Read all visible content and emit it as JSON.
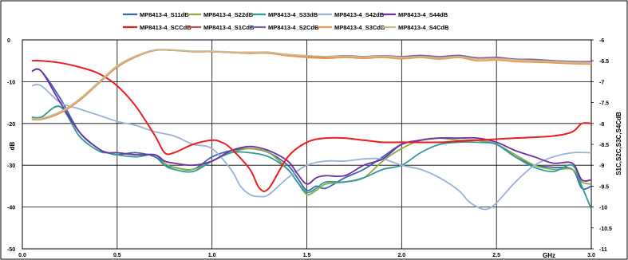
{
  "chart_data": {
    "type": "line",
    "title": "",
    "xlabel": "GHz",
    "ylabel": "dB",
    "y2label": "S1C,S2C,S3C,S4CdB",
    "xlim": [
      0,
      3
    ],
    "ylim": [
      -50,
      0
    ],
    "y2lim": [
      -11,
      -6
    ],
    "grid": true,
    "legend_position": "top",
    "x_ticks": [
      "0.0",
      "0.5",
      "1.0",
      "1.5",
      "2.0",
      "2.5",
      "3.0"
    ],
    "y_ticks": [
      "0",
      "-10",
      "-20",
      "-30",
      "-40",
      "-50"
    ],
    "y2_ticks": [
      "-6",
      "-6.5",
      "-7",
      "-7.5",
      "-8",
      "-8.5",
      "-9",
      "-9.5",
      "-10",
      "-10.5",
      "-11"
    ],
    "series": [
      {
        "name": "MP8413-4_S11dB",
        "color": "#3a66b0",
        "axis": "left",
        "x": [
          0.05,
          0.1,
          0.2,
          0.3,
          0.4,
          0.45,
          0.5,
          0.6,
          0.7,
          0.75,
          0.8,
          0.9,
          1.0,
          1.1,
          1.2,
          1.3,
          1.4,
          1.45,
          1.5,
          1.55,
          1.6,
          1.7,
          1.8,
          1.9,
          2.0,
          2.1,
          2.2,
          2.3,
          2.4,
          2.5,
          2.6,
          2.7,
          2.8,
          2.9,
          2.95,
          3.0
        ],
        "y": [
          -7.5,
          -7.5,
          -14,
          -22,
          -26,
          -27,
          -27.5,
          -27,
          -28,
          -30,
          -30.5,
          -31,
          -28,
          -26.5,
          -26,
          -27,
          -30,
          -33,
          -36,
          -35,
          -35.5,
          -33,
          -31,
          -28,
          -25,
          -24,
          -23.5,
          -24,
          -24,
          -25,
          -28,
          -30,
          -30.5,
          -31,
          -35.5,
          -35
        ]
      },
      {
        "name": "MP8413-4_S22dB",
        "color": "#8faa43",
        "axis": "left",
        "x": [
          0.05,
          0.1,
          0.2,
          0.3,
          0.4,
          0.45,
          0.5,
          0.6,
          0.7,
          0.75,
          0.8,
          0.9,
          1.0,
          1.1,
          1.2,
          1.3,
          1.4,
          1.45,
          1.5,
          1.55,
          1.6,
          1.7,
          1.8,
          1.9,
          2.0,
          2.1,
          2.2,
          2.3,
          2.4,
          2.5,
          2.6,
          2.7,
          2.8,
          2.9,
          2.95,
          3.0
        ],
        "y": [
          -18.5,
          -18.5,
          -16,
          -23,
          -26.5,
          -27,
          -27,
          -27.5,
          -27.5,
          -29.5,
          -30.5,
          -31,
          -29,
          -27,
          -26,
          -27,
          -31,
          -34,
          -37,
          -36,
          -34.5,
          -34,
          -33,
          -29,
          -26,
          -24,
          -23.5,
          -24,
          -24,
          -25,
          -27.5,
          -30,
          -31,
          -31,
          -34,
          -34.5
        ]
      },
      {
        "name": "MP8413-4_S33dB",
        "color": "#2f9c9c",
        "axis": "left",
        "x": [
          0.05,
          0.1,
          0.2,
          0.3,
          0.4,
          0.45,
          0.5,
          0.6,
          0.7,
          0.75,
          0.8,
          0.9,
          1.0,
          1.1,
          1.2,
          1.3,
          1.4,
          1.45,
          1.5,
          1.55,
          1.6,
          1.7,
          1.8,
          1.9,
          2.0,
          2.1,
          2.2,
          2.3,
          2.4,
          2.5,
          2.6,
          2.7,
          2.8,
          2.9,
          2.95,
          3.0
        ],
        "y": [
          -18.5,
          -18.5,
          -16,
          -23,
          -26.5,
          -27,
          -27.5,
          -28,
          -27.5,
          -30,
          -31,
          -31.5,
          -29,
          -27,
          -27,
          -28,
          -31,
          -34,
          -36.5,
          -35.5,
          -34,
          -34,
          -33,
          -31,
          -30,
          -27,
          -25,
          -24.5,
          -24.5,
          -25,
          -28,
          -30.5,
          -31.5,
          -30,
          -35,
          -40.5
        ]
      },
      {
        "name": "MP8413-4_S42dB",
        "color": "#99b3d6",
        "axis": "left",
        "x": [
          0.05,
          0.1,
          0.2,
          0.3,
          0.4,
          0.5,
          0.6,
          0.7,
          0.8,
          0.9,
          1.0,
          1.1,
          1.15,
          1.2,
          1.25,
          1.3,
          1.4,
          1.5,
          1.6,
          1.7,
          1.8,
          1.9,
          2.0,
          2.1,
          2.2,
          2.3,
          2.35,
          2.4,
          2.45,
          2.5,
          2.6,
          2.7,
          2.8,
          2.9,
          3.0
        ],
        "y": [
          -11,
          -11,
          -15,
          -16.5,
          -18,
          -19.5,
          -20.5,
          -22,
          -23,
          -25,
          -26,
          -31,
          -35,
          -37,
          -37.5,
          -37,
          -33,
          -30,
          -29,
          -29,
          -28.5,
          -28.5,
          -30,
          -31,
          -33,
          -36,
          -38.5,
          -40,
          -40.5,
          -39,
          -34,
          -30,
          -28,
          -27,
          -27
        ]
      },
      {
        "name": "MP8413-4_S44dB",
        "color": "#7030a0",
        "axis": "left",
        "x": [
          0.05,
          0.1,
          0.2,
          0.3,
          0.4,
          0.45,
          0.5,
          0.6,
          0.7,
          0.75,
          0.8,
          0.9,
          1.0,
          1.1,
          1.2,
          1.3,
          1.4,
          1.45,
          1.5,
          1.55,
          1.6,
          1.7,
          1.8,
          1.9,
          2.0,
          2.1,
          2.2,
          2.3,
          2.4,
          2.5,
          2.6,
          2.7,
          2.8,
          2.9,
          2.95,
          3.0
        ],
        "y": [
          -7.5,
          -7.5,
          -15,
          -22,
          -26,
          -27,
          -27,
          -27.5,
          -27.5,
          -29,
          -29.5,
          -30,
          -29,
          -26.5,
          -25.5,
          -26.5,
          -29,
          -32,
          -34.5,
          -33,
          -32.5,
          -32.5,
          -30,
          -28.5,
          -25,
          -24,
          -23.5,
          -23.5,
          -23.5,
          -24.5,
          -26.5,
          -28,
          -29.5,
          -29.5,
          -33.5,
          -33.5
        ]
      },
      {
        "name": "MP8413-4_SCCdB",
        "color": "#ee1c1c",
        "axis": "left",
        "x": [
          0.05,
          0.1,
          0.2,
          0.3,
          0.4,
          0.5,
          0.6,
          0.7,
          0.75,
          0.8,
          0.9,
          1.0,
          1.05,
          1.1,
          1.2,
          1.25,
          1.3,
          1.4,
          1.5,
          1.6,
          1.7,
          1.8,
          1.9,
          2.0,
          2.2,
          2.4,
          2.6,
          2.8,
          2.9,
          2.95,
          3.0
        ],
        "y": [
          -5,
          -5,
          -5.5,
          -6.5,
          -8,
          -11,
          -16,
          -23,
          -27,
          -27,
          -25,
          -24,
          -24.5,
          -26,
          -31,
          -35.5,
          -35.5,
          -28,
          -24.5,
          -23.5,
          -23.5,
          -24,
          -24.5,
          -24.5,
          -24.5,
          -24,
          -23.5,
          -23,
          -22,
          -20,
          -20
        ]
      },
      {
        "name": "MP8413-4_S1CdB",
        "color": "#c0504d",
        "axis": "right",
        "x": [
          0.05,
          0.1,
          0.2,
          0.3,
          0.4,
          0.5,
          0.6,
          0.7,
          0.8,
          0.9,
          1.0,
          1.1,
          1.2,
          1.3,
          1.4,
          1.5,
          1.6,
          1.7,
          1.8,
          1.9,
          2.0,
          2.1,
          2.2,
          2.3,
          2.4,
          2.5,
          2.6,
          2.7,
          2.8,
          2.9,
          3.0
        ],
        "y": [
          -7.9,
          -7.9,
          -7.75,
          -7.45,
          -7.05,
          -6.65,
          -6.4,
          -6.25,
          -6.25,
          -6.28,
          -6.28,
          -6.3,
          -6.32,
          -6.3,
          -6.38,
          -6.4,
          -6.42,
          -6.4,
          -6.42,
          -6.4,
          -6.42,
          -6.38,
          -6.42,
          -6.38,
          -6.45,
          -6.42,
          -6.47,
          -6.47,
          -6.5,
          -6.52,
          -6.52
        ]
      },
      {
        "name": "MP8413-4_S2CdB",
        "color": "#8064a2",
        "axis": "right",
        "x": [
          0.05,
          0.1,
          0.2,
          0.3,
          0.4,
          0.5,
          0.6,
          0.7,
          0.8,
          0.9,
          1.0,
          1.1,
          1.2,
          1.3,
          1.4,
          1.5,
          1.6,
          1.7,
          1.8,
          1.9,
          2.0,
          2.1,
          2.2,
          2.3,
          2.4,
          2.5,
          2.6,
          2.7,
          2.8,
          2.9,
          3.0
        ],
        "y": [
          -7.9,
          -7.9,
          -7.75,
          -7.45,
          -7.05,
          -6.65,
          -6.4,
          -6.25,
          -6.25,
          -6.28,
          -6.28,
          -6.3,
          -6.3,
          -6.3,
          -6.36,
          -6.38,
          -6.4,
          -6.38,
          -6.4,
          -6.38,
          -6.4,
          -6.37,
          -6.4,
          -6.37,
          -6.43,
          -6.42,
          -6.46,
          -6.47,
          -6.5,
          -6.52,
          -6.53
        ]
      },
      {
        "name": "MP8413-4_S3CdB",
        "color": "#f79646",
        "axis": "right",
        "x": [
          0.05,
          0.1,
          0.2,
          0.3,
          0.4,
          0.5,
          0.6,
          0.7,
          0.8,
          0.9,
          1.0,
          1.1,
          1.2,
          1.3,
          1.4,
          1.5,
          1.6,
          1.7,
          1.8,
          1.9,
          2.0,
          2.1,
          2.2,
          2.3,
          2.4,
          2.5,
          2.6,
          2.7,
          2.8,
          2.9,
          3.0
        ],
        "y": [
          -7.9,
          -7.9,
          -7.75,
          -7.45,
          -7.05,
          -6.65,
          -6.4,
          -6.25,
          -6.25,
          -6.28,
          -6.28,
          -6.3,
          -6.32,
          -6.32,
          -6.38,
          -6.42,
          -6.44,
          -6.42,
          -6.44,
          -6.42,
          -6.45,
          -6.42,
          -6.46,
          -6.42,
          -6.5,
          -6.48,
          -6.52,
          -6.53,
          -6.55,
          -6.57,
          -6.58
        ]
      },
      {
        "name": "MP8413-4_S4CdB",
        "color": "#c4bd97",
        "axis": "right",
        "x": [
          0.05,
          0.1,
          0.2,
          0.3,
          0.4,
          0.5,
          0.6,
          0.7,
          0.8,
          0.9,
          1.0,
          1.1,
          1.2,
          1.3,
          1.4,
          1.5,
          1.6,
          1.7,
          1.8,
          1.9,
          2.0,
          2.1,
          2.2,
          2.3,
          2.4,
          2.5,
          2.6,
          2.7,
          2.8,
          2.9,
          3.0
        ],
        "y": [
          -7.88,
          -7.88,
          -7.72,
          -7.42,
          -7.02,
          -6.62,
          -6.38,
          -6.24,
          -6.24,
          -6.27,
          -6.27,
          -6.29,
          -6.3,
          -6.3,
          -6.35,
          -6.38,
          -6.4,
          -6.39,
          -6.41,
          -6.39,
          -6.42,
          -6.4,
          -6.43,
          -6.4,
          -6.46,
          -6.45,
          -6.48,
          -6.5,
          -6.52,
          -6.54,
          -6.55
        ]
      }
    ]
  }
}
